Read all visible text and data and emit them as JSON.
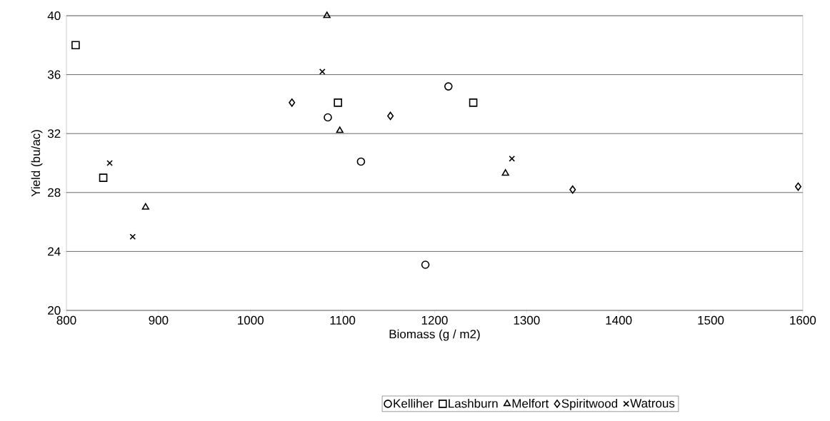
{
  "chart_data": {
    "type": "scatter",
    "xlabel": "Biomass (g / m2)",
    "ylabel": "Yield (bu/ac)",
    "xlim": [
      800,
      1600
    ],
    "xticks": [
      800,
      900,
      1000,
      1100,
      1200,
      1300,
      1400,
      1500,
      1600
    ],
    "ylim": [
      20,
      40
    ],
    "yticks": [
      20,
      24,
      28,
      32,
      36,
      40
    ],
    "grid": "y",
    "legend": "bottom",
    "series": [
      {
        "name": "Kelliher",
        "color": "#000000",
        "marker": "circle",
        "x": [
          1084,
          1120,
          1190,
          1215
        ],
        "values": [
          33.1,
          30.1,
          23.1,
          35.2
        ]
      },
      {
        "name": "Lashburn",
        "color": "#000000",
        "marker": "square",
        "x": [
          810,
          840,
          1095,
          1242
        ],
        "values": [
          38,
          29,
          34.1,
          34.1
        ]
      },
      {
        "name": "Melfort",
        "color": "#000000",
        "marker": "triangle",
        "x": [
          886,
          1083,
          1097,
          1277
        ],
        "values": [
          27,
          40,
          32.2,
          29.3
        ]
      },
      {
        "name": "Spiritwood",
        "color": "#000000",
        "marker": "diamond",
        "x": [
          1045,
          1152,
          1350,
          1595
        ],
        "values": [
          34.1,
          33.2,
          28.2,
          28.4
        ]
      },
      {
        "name": "Watrous",
        "color": "#000000",
        "marker": "cross",
        "x": [
          847,
          872,
          1078,
          1284
        ],
        "values": [
          30,
          25,
          36.2,
          30.3
        ]
      }
    ]
  }
}
